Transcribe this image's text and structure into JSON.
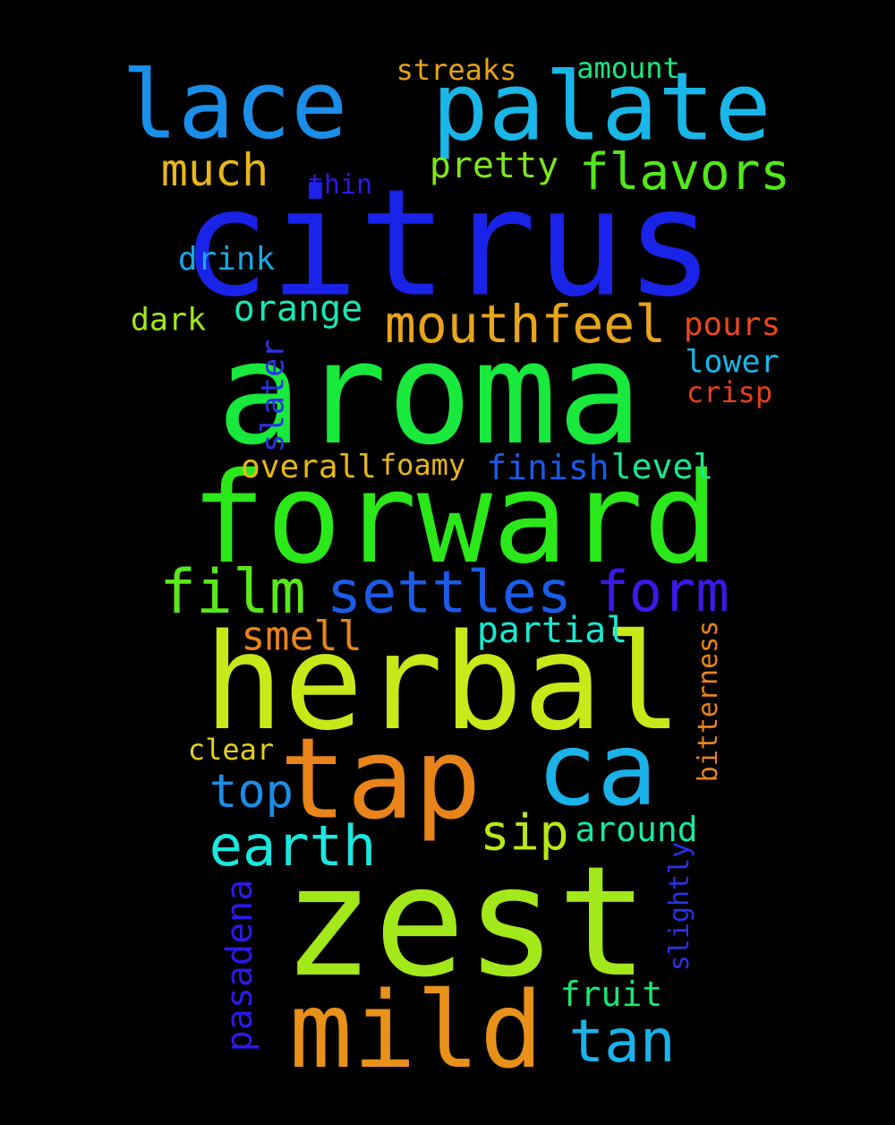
{
  "background": "#000000",
  "words": [
    {
      "text": "citrus",
      "color": "#1a23e8"
    },
    {
      "text": "aroma",
      "color": "#19e83c"
    },
    {
      "text": "forward",
      "color": "#2be81a"
    },
    {
      "text": "herbal",
      "color": "#c9e81a"
    },
    {
      "text": "zest",
      "color": "#a2e81a"
    },
    {
      "text": "palate",
      "color": "#1ab6e8"
    },
    {
      "text": "lace",
      "color": "#1a8ee8"
    },
    {
      "text": "tap",
      "color": "#e8841a"
    },
    {
      "text": "ca",
      "color": "#1ab2e8"
    },
    {
      "text": "mild",
      "color": "#e8911a"
    },
    {
      "text": "much",
      "color": "#e8b61a"
    },
    {
      "text": "flavors",
      "color": "#52e81a"
    },
    {
      "text": "pretty",
      "color": "#7de81a"
    },
    {
      "text": "streaks",
      "color": "#e8a41a"
    },
    {
      "text": "amount",
      "color": "#1ae87f"
    },
    {
      "text": "thin",
      "color": "#2b1ae8"
    },
    {
      "text": "drink",
      "color": "#1aa7e8"
    },
    {
      "text": "orange",
      "color": "#1ae8b2"
    },
    {
      "text": "dark",
      "color": "#a2e81a"
    },
    {
      "text": "mouthfeel",
      "color": "#e8a41a"
    },
    {
      "text": "pours",
      "color": "#e8481a"
    },
    {
      "text": "lower",
      "color": "#1ab6e8"
    },
    {
      "text": "crisp",
      "color": "#e8401a"
    },
    {
      "text": "slater",
      "color": "#2b33e8"
    },
    {
      "text": "overall",
      "color": "#e8b61a"
    },
    {
      "text": "foamy",
      "color": "#e8b61a"
    },
    {
      "text": "finish",
      "color": "#1a5ce8"
    },
    {
      "text": "level",
      "color": "#1ae88e"
    },
    {
      "text": "film",
      "color": "#5ae81a"
    },
    {
      "text": "settles",
      "color": "#1a5ce8"
    },
    {
      "text": "form",
      "color": "#3a1ae8"
    },
    {
      "text": "smell",
      "color": "#e8841a"
    },
    {
      "text": "partial",
      "color": "#1ae8d0"
    },
    {
      "text": "bitterness",
      "color": "#e8841a"
    },
    {
      "text": "clear",
      "color": "#e8d01a"
    },
    {
      "text": "top",
      "color": "#1a8ee8"
    },
    {
      "text": "earth",
      "color": "#1ae8e0"
    },
    {
      "text": "sip",
      "color": "#b9e81a"
    },
    {
      "text": "around",
      "color": "#1ae8a2"
    },
    {
      "text": "slightly",
      "color": "#2b33e8"
    },
    {
      "text": "pasadena",
      "color": "#2b1ae8"
    },
    {
      "text": "fruit",
      "color": "#1ae86f"
    },
    {
      "text": "tan",
      "color": "#1ab2e8"
    }
  ]
}
